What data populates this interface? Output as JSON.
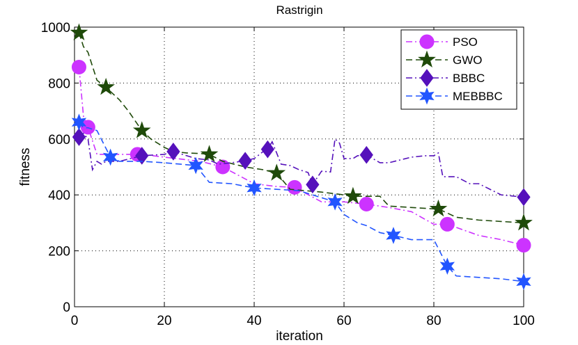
{
  "chart_data": {
    "type": "line",
    "title": "Rastrigin",
    "xlabel": "iteration",
    "ylabel": "fitness",
    "xlim": [
      0,
      100
    ],
    "ylim": [
      0,
      1000
    ],
    "xticks": [
      0,
      20,
      40,
      60,
      80,
      100
    ],
    "yticks": [
      0,
      200,
      400,
      600,
      800,
      1000
    ],
    "grid": true,
    "legend_position": "top-right",
    "series": [
      {
        "name": "PSO",
        "color": "#cc33ff",
        "dash": "dash-dot",
        "marker": "circle",
        "x": [
          1,
          2,
          3,
          5,
          8,
          15,
          20,
          28,
          33,
          40,
          45,
          49,
          55,
          60,
          65,
          70,
          75,
          80,
          83,
          90,
          95,
          100
        ],
        "y": [
          857,
          680,
          642,
          545,
          545,
          545,
          535,
          520,
          500,
          440,
          430,
          427,
          375,
          375,
          367,
          355,
          340,
          295,
          295,
          255,
          240,
          220
        ],
        "marker_x": [
          1,
          3,
          14,
          33,
          49,
          65,
          83,
          100
        ],
        "marker_y": [
          857,
          642,
          545,
          500,
          427,
          367,
          295,
          220
        ]
      },
      {
        "name": "GWO",
        "color": "#1f4a0a",
        "dash": "dashed",
        "marker": "star5",
        "x": [
          1,
          2,
          3,
          5,
          7,
          10,
          12,
          15,
          17,
          20,
          22,
          25,
          28,
          30,
          33,
          38,
          42,
          45,
          48,
          55,
          60,
          62,
          68,
          70,
          75,
          80,
          81,
          85,
          90,
          95,
          100
        ],
        "y": [
          980,
          930,
          910,
          810,
          785,
          740,
          700,
          630,
          600,
          570,
          555,
          550,
          548,
          545,
          520,
          500,
          490,
          478,
          420,
          410,
          400,
          395,
          395,
          360,
          355,
          350,
          350,
          320,
          310,
          305,
          300
        ],
        "marker_x": [
          1,
          7,
          15,
          30,
          45,
          62,
          81,
          100
        ],
        "marker_y": [
          980,
          785,
          630,
          545,
          478,
          395,
          350,
          300
        ]
      },
      {
        "name": "BBBC",
        "color": "#5511bb",
        "dash": "dash-dot",
        "marker": "diamond",
        "x": [
          1,
          2,
          3,
          4,
          5,
          6,
          7,
          10,
          15,
          20,
          22,
          25,
          27,
          30,
          32,
          35,
          38,
          40,
          42,
          43,
          44,
          46,
          48,
          50,
          52,
          53,
          55,
          57,
          58,
          59,
          60,
          62,
          63,
          65,
          68,
          70,
          75,
          78,
          80,
          81,
          82,
          85,
          88,
          90,
          95,
          100
        ],
        "y": [
          607,
          620,
          600,
          490,
          520,
          510,
          520,
          520,
          540,
          545,
          555,
          540,
          530,
          525,
          510,
          515,
          522,
          530,
          555,
          563,
          590,
          510,
          505,
          490,
          480,
          437,
          485,
          482,
          600,
          585,
          530,
          530,
          540,
          543,
          515,
          515,
          535,
          540,
          540,
          550,
          465,
          465,
          440,
          440,
          400,
          392
        ],
        "marker_x": [
          1,
          15,
          22,
          38,
          43,
          53,
          65,
          100
        ],
        "marker_y": [
          607,
          540,
          555,
          522,
          563,
          437,
          543,
          392
        ]
      },
      {
        "name": "MEBBBC",
        "color": "#2255ff",
        "dash": "dashed",
        "marker": "star6",
        "x": [
          1,
          2,
          3,
          5,
          8,
          10,
          15,
          20,
          27,
          30,
          35,
          40,
          45,
          50,
          55,
          58,
          60,
          63,
          65,
          68,
          71,
          75,
          80,
          83,
          85,
          90,
          95,
          100
        ],
        "y": [
          660,
          640,
          640,
          630,
          535,
          520,
          520,
          515,
          505,
          445,
          440,
          425,
          420,
          415,
          390,
          375,
          330,
          300,
          290,
          265,
          255,
          240,
          240,
          145,
          110,
          105,
          100,
          90
        ],
        "marker_x": [
          1,
          8,
          27,
          40,
          58,
          71,
          83,
          100
        ],
        "marker_y": [
          660,
          535,
          505,
          425,
          375,
          255,
          145,
          90
        ]
      }
    ]
  }
}
